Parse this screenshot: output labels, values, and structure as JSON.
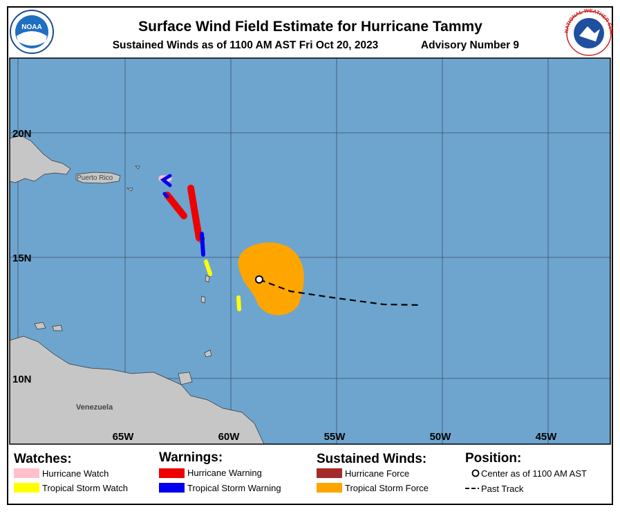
{
  "header": {
    "title": "Surface Wind Field Estimate for Hurricane Tammy",
    "subtitle": "Sustained Winds as of 1100 AM AST Fri Oct 20, 2023",
    "advisory": "Advisory Number 9"
  },
  "logos": {
    "noaa": "NOAA",
    "nws": "NATIONAL WEATHER SERVICE"
  },
  "map": {
    "lat_labels": [
      "20N",
      "15N",
      "10N"
    ],
    "lon_labels": [
      "65W",
      "60W",
      "55W",
      "50W",
      "45W"
    ],
    "places": [
      "Puerto Rico",
      "Venezuela"
    ]
  },
  "legend": {
    "watches": {
      "title": "Watches:",
      "items": [
        "Hurricane Watch",
        "Tropical Storm Watch"
      ]
    },
    "warnings": {
      "title": "Warnings:",
      "items": [
        "Hurricane Warning",
        "Tropical Storm Warning"
      ]
    },
    "winds": {
      "title": "Sustained Winds:",
      "items": [
        "Hurricane Force",
        "Tropical Storm Force"
      ]
    },
    "position": {
      "title": "Position:",
      "items": [
        "Center as of 1100 AM AST",
        "Past Track"
      ]
    }
  }
}
